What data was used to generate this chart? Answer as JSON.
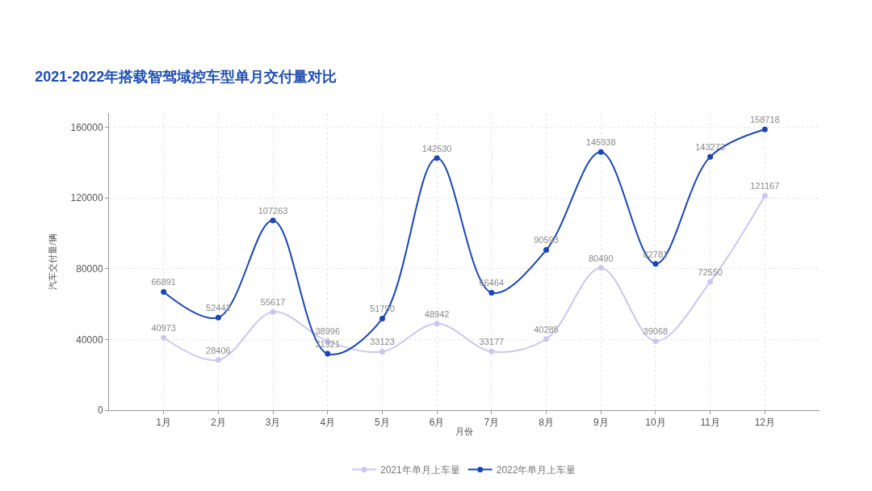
{
  "chart_data": {
    "type": "line",
    "title": "2021-2022年搭载智驾域控车型单月交付量对比",
    "xlabel": "月份",
    "ylabel": "汽车交付量/辆",
    "categories": [
      "1月",
      "2月",
      "3月",
      "4月",
      "5月",
      "6月",
      "7月",
      "8月",
      "9月",
      "10月",
      "11月",
      "12月"
    ],
    "series": [
      {
        "name": "2021年单月上车量",
        "color": "#cbc7ee",
        "values": [
          40973,
          28406,
          55617,
          38996,
          33123,
          48942,
          33177,
          40285,
          80490,
          39068,
          72550,
          121167
        ]
      },
      {
        "name": "2022年单月上车量",
        "color": "#1a45b5",
        "values": [
          66891,
          52442,
          107263,
          31921,
          51790,
          142530,
          66464,
          90593,
          145938,
          82781,
          143273,
          158718
        ]
      }
    ],
    "ylim": [
      0,
      168000
    ],
    "yticks": [
      0,
      40000,
      80000,
      120000,
      160000
    ],
    "grid": true,
    "legend": "bottom",
    "marker": "circle",
    "line_style": "solid",
    "data_labels": true
  }
}
